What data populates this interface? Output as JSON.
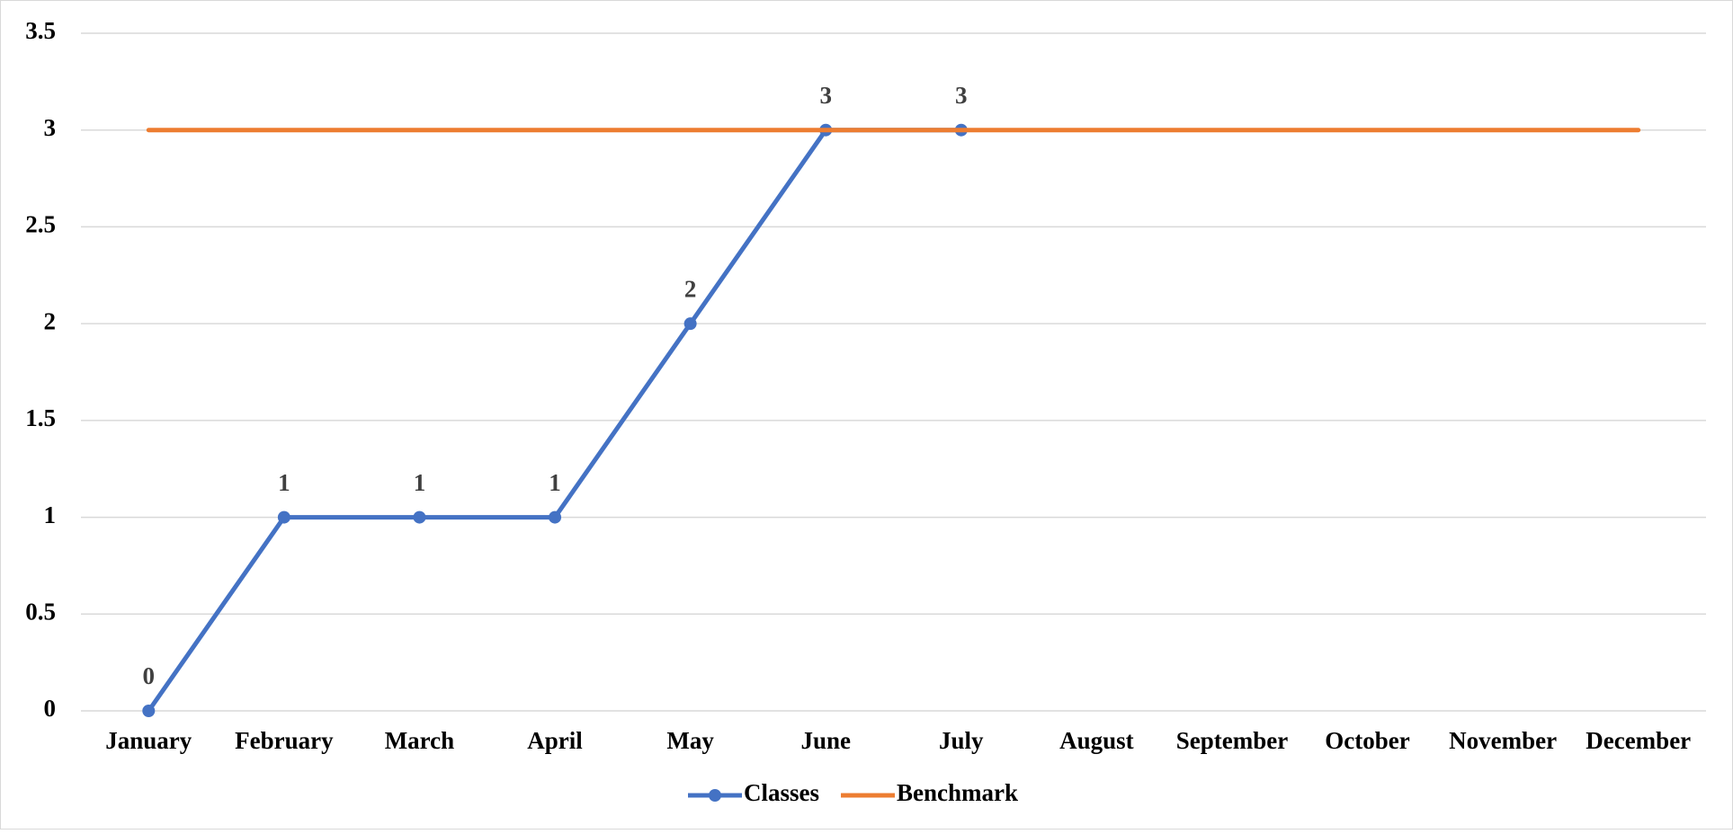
{
  "chart_data": {
    "type": "line",
    "categories": [
      "January",
      "February",
      "March",
      "April",
      "May",
      "June",
      "July",
      "August",
      "September",
      "October",
      "November",
      "December"
    ],
    "series": [
      {
        "name": "Classes",
        "color": "#4472c4",
        "values": [
          0,
          1,
          1,
          1,
          2,
          3,
          3,
          null,
          null,
          null,
          null,
          null
        ]
      },
      {
        "name": "Benchmark",
        "color": "#ed7d31",
        "values": [
          3,
          3,
          3,
          3,
          3,
          3,
          3,
          3,
          3,
          3,
          3,
          3
        ]
      }
    ],
    "ylim": [
      0,
      3.5
    ],
    "yticks": [
      0,
      0.5,
      1,
      1.5,
      2,
      2.5,
      3,
      3.5
    ],
    "grid": true,
    "legend": "bottom"
  }
}
